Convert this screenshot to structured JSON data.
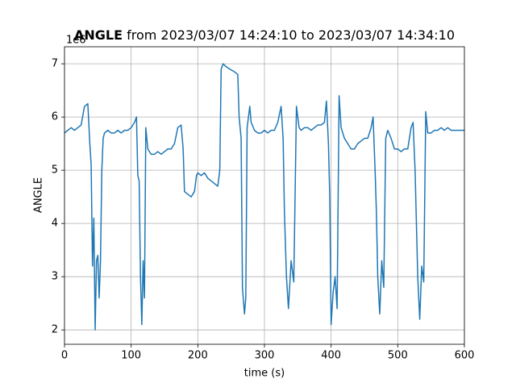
{
  "chart_data": {
    "type": "line",
    "title_bold": "ANGLE",
    "title": "from 2023/03/07 14:24:10 to 2023/03/07 14:34:10",
    "y_offset_label": "1e6",
    "xlabel": "time (s)",
    "ylabel": "ANGLE",
    "color": "#1f77b4",
    "xlim": [
      0,
      600
    ],
    "ylim": [
      1.73,
      7.32
    ],
    "xticks": [
      0,
      100,
      200,
      300,
      400,
      500,
      600
    ],
    "yticks": [
      2,
      3,
      4,
      5,
      6,
      7
    ],
    "grid": true,
    "x": [
      0,
      5,
      10,
      15,
      20,
      25,
      30,
      35,
      38,
      40,
      42,
      44,
      46,
      48,
      50,
      52,
      54,
      56,
      58,
      60,
      65,
      70,
      75,
      80,
      85,
      90,
      95,
      100,
      105,
      108,
      110,
      112,
      114,
      116,
      118,
      120,
      122,
      125,
      130,
      135,
      140,
      145,
      150,
      155,
      160,
      165,
      170,
      175,
      178,
      180,
      185,
      190,
      195,
      198,
      200,
      205,
      210,
      215,
      220,
      225,
      230,
      233,
      235,
      238,
      242,
      248,
      255,
      260,
      262,
      265,
      267,
      270,
      272,
      274,
      278,
      280,
      285,
      290,
      295,
      300,
      305,
      310,
      315,
      320,
      325,
      328,
      330,
      333,
      336,
      340,
      344,
      348,
      352,
      355,
      360,
      365,
      370,
      375,
      380,
      385,
      390,
      393,
      396,
      398,
      400,
      403,
      406,
      409,
      412,
      415,
      420,
      425,
      430,
      435,
      440,
      445,
      450,
      455,
      460,
      463,
      466,
      468,
      470,
      473,
      476,
      479,
      482,
      485,
      490,
      495,
      500,
      505,
      510,
      515,
      520,
      523,
      526,
      528,
      530,
      533,
      536,
      539,
      542,
      545,
      550,
      555,
      560,
      565,
      570,
      575,
      580,
      600
    ],
    "values": [
      5.7,
      5.75,
      5.8,
      5.75,
      5.8,
      5.85,
      6.2,
      6.25,
      5.5,
      5.1,
      3.2,
      4.1,
      2.0,
      3.3,
      3.4,
      2.6,
      3.3,
      5.0,
      5.6,
      5.7,
      5.75,
      5.7,
      5.7,
      5.75,
      5.7,
      5.75,
      5.75,
      5.8,
      5.9,
      6.0,
      4.9,
      4.8,
      3.0,
      2.1,
      3.3,
      2.6,
      5.8,
      5.4,
      5.3,
      5.3,
      5.35,
      5.3,
      5.35,
      5.4,
      5.4,
      5.5,
      5.8,
      5.85,
      5.4,
      4.6,
      4.55,
      4.5,
      4.6,
      4.9,
      4.95,
      4.9,
      4.95,
      4.85,
      4.8,
      4.75,
      4.7,
      5.0,
      6.9,
      7.0,
      6.95,
      6.9,
      6.85,
      6.8,
      6.0,
      5.6,
      2.8,
      2.3,
      2.6,
      5.8,
      6.2,
      5.9,
      5.75,
      5.7,
      5.7,
      5.75,
      5.7,
      5.75,
      5.75,
      5.9,
      6.2,
      5.6,
      4.2,
      3.0,
      2.4,
      3.3,
      2.9,
      6.2,
      5.8,
      5.75,
      5.8,
      5.8,
      5.75,
      5.8,
      5.85,
      5.85,
      5.9,
      6.3,
      5.5,
      4.5,
      2.1,
      2.7,
      3.0,
      2.4,
      6.4,
      5.8,
      5.6,
      5.5,
      5.4,
      5.4,
      5.5,
      5.55,
      5.6,
      5.6,
      5.8,
      6.0,
      5.0,
      4.2,
      3.0,
      2.3,
      3.3,
      2.8,
      5.6,
      5.75,
      5.6,
      5.4,
      5.4,
      5.35,
      5.4,
      5.4,
      5.8,
      5.9,
      5.0,
      4.0,
      3.0,
      2.2,
      3.2,
      2.9,
      6.1,
      5.7,
      5.7,
      5.75,
      5.75,
      5.8,
      5.75,
      5.8,
      5.75,
      5.75
    ]
  }
}
